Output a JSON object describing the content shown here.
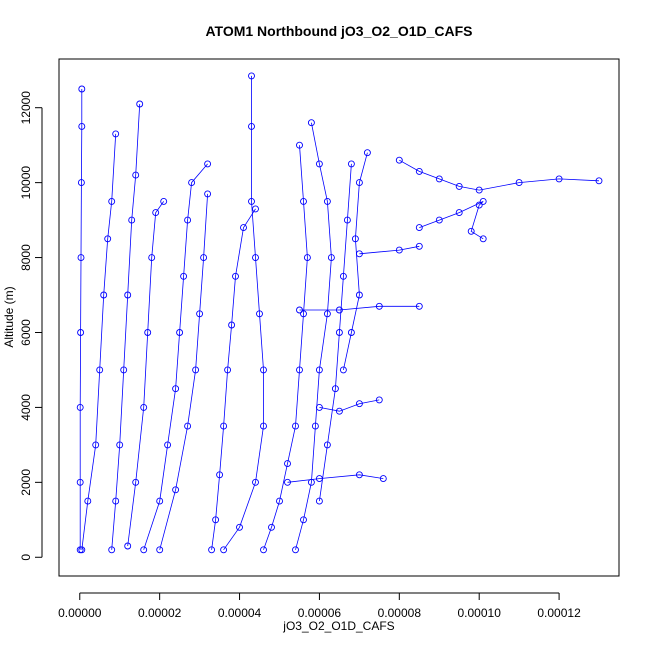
{
  "chart_data": {
    "type": "scatter",
    "title": "ATOM1 Northbound jO3_O2_O1D_CAFS",
    "xlabel": "jO3_O2_O1D_CAFS",
    "ylabel": "Altitude (m)",
    "xlim": [
      -5.2e-06,
      0.000135
    ],
    "ylim": [
      -500,
      13300
    ],
    "x_ticks": [
      0,
      2e-05,
      4e-05,
      6e-05,
      8e-05,
      0.0001,
      0.00012
    ],
    "x_tick_labels": [
      "0.00000",
      "0.00002",
      "0.00004",
      "0.00006",
      "0.00008",
      "0.00010",
      "0.00012"
    ],
    "y_ticks": [
      0,
      2000,
      4000,
      6000,
      8000,
      10000,
      12000
    ],
    "y_tick_labels": [
      "0",
      "2000",
      "4000",
      "6000",
      "8000",
      "10000",
      "12000"
    ],
    "marker": "open-circle",
    "color": "#0000ff",
    "grid": false,
    "series": [
      {
        "name": "",
        "points": [
          [
            1e-07,
            200
          ],
          [
            1e-07,
            2000
          ],
          [
            1e-07,
            4000
          ],
          [
            2e-07,
            6000
          ],
          [
            3e-07,
            8000
          ],
          [
            4e-07,
            10000
          ],
          [
            5e-07,
            11500
          ],
          [
            5e-07,
            12500
          ]
        ]
      },
      {
        "name": "",
        "points": [
          [
            5e-07,
            200
          ],
          [
            2e-06,
            1500
          ],
          [
            4e-06,
            3000
          ],
          [
            5e-06,
            5000
          ],
          [
            6e-06,
            7000
          ],
          [
            7e-06,
            8500
          ],
          [
            8e-06,
            9500
          ],
          [
            9e-06,
            11300
          ]
        ]
      },
      {
        "name": "",
        "points": [
          [
            8e-06,
            200
          ],
          [
            9e-06,
            1500
          ],
          [
            1e-05,
            3000
          ],
          [
            1.1e-05,
            5000
          ],
          [
            1.2e-05,
            7000
          ],
          [
            1.3e-05,
            9000
          ],
          [
            1.4e-05,
            10200
          ],
          [
            1.5e-05,
            12100
          ]
        ]
      },
      {
        "name": "",
        "points": [
          [
            1.2e-05,
            300
          ],
          [
            1.4e-05,
            2000
          ],
          [
            1.6e-05,
            4000
          ],
          [
            1.7e-05,
            6000
          ],
          [
            1.8e-05,
            8000
          ],
          [
            1.9e-05,
            9200
          ],
          [
            2.1e-05,
            9500
          ]
        ]
      },
      {
        "name": "",
        "points": [
          [
            1.6e-05,
            200
          ],
          [
            2e-05,
            1500
          ],
          [
            2.2e-05,
            3000
          ],
          [
            2.4e-05,
            4500
          ],
          [
            2.5e-05,
            6000
          ],
          [
            2.6e-05,
            7500
          ],
          [
            2.7e-05,
            9000
          ],
          [
            2.8e-05,
            10000
          ],
          [
            3.2e-05,
            10500
          ]
        ]
      },
      {
        "name": "",
        "points": [
          [
            2e-05,
            200
          ],
          [
            2.4e-05,
            1800
          ],
          [
            2.7e-05,
            3500
          ],
          [
            2.9e-05,
            5000
          ],
          [
            3e-05,
            6500
          ],
          [
            3.1e-05,
            8000
          ],
          [
            3.2e-05,
            9700
          ]
        ]
      },
      {
        "name": "",
        "points": [
          [
            3.3e-05,
            200
          ],
          [
            3.4e-05,
            1000
          ],
          [
            3.5e-05,
            2200
          ],
          [
            3.6e-05,
            3500
          ],
          [
            3.7e-05,
            5000
          ],
          [
            3.8e-05,
            6200
          ],
          [
            3.9e-05,
            7500
          ],
          [
            4.1e-05,
            8800
          ],
          [
            4.4e-05,
            9300
          ]
        ]
      },
      {
        "name": "",
        "points": [
          [
            3.6e-05,
            200
          ],
          [
            4e-05,
            800
          ],
          [
            4.4e-05,
            2000
          ],
          [
            4.6e-05,
            3500
          ],
          [
            4.6e-05,
            5000
          ],
          [
            4.5e-05,
            6500
          ],
          [
            4.4e-05,
            8000
          ],
          [
            4.3e-05,
            9500
          ],
          [
            4.3e-05,
            11500
          ],
          [
            4.3e-05,
            12850
          ]
        ]
      },
      {
        "name": "",
        "points": [
          [
            4.6e-05,
            200
          ],
          [
            4.8e-05,
            800
          ],
          [
            5e-05,
            1500
          ],
          [
            5.2e-05,
            2500
          ],
          [
            5.4e-05,
            3500
          ],
          [
            5.5e-05,
            5000
          ],
          [
            5.6e-05,
            6500
          ],
          [
            5.7e-05,
            8000
          ],
          [
            5.6e-05,
            9500
          ],
          [
            5.5e-05,
            11000
          ]
        ]
      },
      {
        "name": "",
        "points": [
          [
            5.4e-05,
            200
          ],
          [
            5.6e-05,
            1000
          ],
          [
            5.8e-05,
            2000
          ],
          [
            5.9e-05,
            3500
          ],
          [
            6e-05,
            5000
          ],
          [
            6.2e-05,
            6500
          ],
          [
            6.3e-05,
            8000
          ],
          [
            6.2e-05,
            9500
          ],
          [
            6e-05,
            10500
          ],
          [
            5.8e-05,
            11600
          ]
        ]
      },
      {
        "name": "",
        "points": [
          [
            6e-05,
            1500
          ],
          [
            6.2e-05,
            3000
          ],
          [
            6.4e-05,
            4500
          ],
          [
            6.5e-05,
            6000
          ],
          [
            6.6e-05,
            7500
          ],
          [
            6.7e-05,
            9000
          ],
          [
            6.8e-05,
            10500
          ]
        ]
      },
      {
        "name": "",
        "points": [
          [
            6.6e-05,
            5000
          ],
          [
            6.8e-05,
            6000
          ],
          [
            7e-05,
            7000
          ],
          [
            6.9e-05,
            8500
          ],
          [
            7e-05,
            10000
          ],
          [
            7.2e-05,
            10800
          ]
        ]
      },
      {
        "name": "",
        "points": [
          [
            8e-05,
            10600
          ],
          [
            8.5e-05,
            10300
          ],
          [
            9e-05,
            10100
          ],
          [
            9.5e-05,
            9900
          ],
          [
            0.0001,
            9800
          ],
          [
            0.00011,
            10000
          ],
          [
            0.00012,
            10100
          ],
          [
            0.00013,
            10050
          ]
        ]
      },
      {
        "name": "",
        "points": [
          [
            8.5e-05,
            8800
          ],
          [
            9e-05,
            9000
          ],
          [
            9.5e-05,
            9200
          ],
          [
            0.000101,
            9500
          ],
          [
            0.0001,
            9400
          ],
          [
            9.8e-05,
            8700
          ],
          [
            0.000101,
            8500
          ]
        ]
      },
      {
        "name": "",
        "points": [
          [
            7e-05,
            8100
          ],
          [
            8e-05,
            8200
          ],
          [
            8.5e-05,
            8300
          ]
        ]
      },
      {
        "name": "",
        "points": [
          [
            5.5e-05,
            6600
          ],
          [
            6.5e-05,
            6600
          ],
          [
            7.5e-05,
            6700
          ],
          [
            8.5e-05,
            6700
          ]
        ]
      },
      {
        "name": "",
        "points": [
          [
            6e-05,
            4000
          ],
          [
            6.5e-05,
            3900
          ],
          [
            7e-05,
            4100
          ],
          [
            7.5e-05,
            4200
          ]
        ]
      },
      {
        "name": "",
        "points": [
          [
            5.2e-05,
            2000
          ],
          [
            6e-05,
            2100
          ],
          [
            7e-05,
            2200
          ],
          [
            7.6e-05,
            2100
          ]
        ]
      }
    ]
  }
}
